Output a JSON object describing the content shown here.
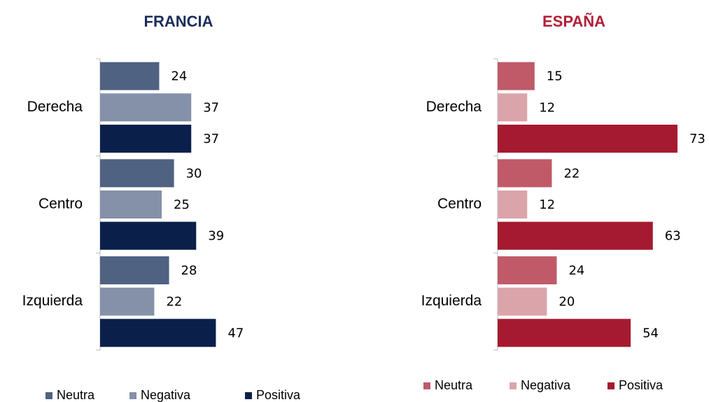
{
  "chart_data": [
    {
      "type": "bar",
      "orientation": "horizontal",
      "title": "FRANCIA",
      "title_color": "#1b2d5b",
      "categories": [
        "Derecha",
        "Centro",
        "Izquierda"
      ],
      "series": [
        {
          "name": "Neutra",
          "color": "#4f6282",
          "values": [
            24,
            30,
            28
          ]
        },
        {
          "name": "Negativa",
          "color": "#8591a8",
          "values": [
            37,
            25,
            22
          ]
        },
        {
          "name": "Positiva",
          "color": "#0b1f4b",
          "values": [
            37,
            39,
            47
          ]
        }
      ]
    },
    {
      "type": "bar",
      "orientation": "horizontal",
      "title": "ESPAÑA",
      "title_color": "#b21f37",
      "categories": [
        "Derecha",
        "Centro",
        "Izquierda"
      ],
      "series": [
        {
          "name": "Neutra",
          "color": "#c05a69",
          "values": [
            15,
            22,
            24
          ]
        },
        {
          "name": "Negativa",
          "color": "#dba4ab",
          "values": [
            12,
            12,
            20
          ]
        },
        {
          "name": "Positiva",
          "color": "#a51a30",
          "values": [
            73,
            63,
            54
          ]
        }
      ]
    }
  ]
}
